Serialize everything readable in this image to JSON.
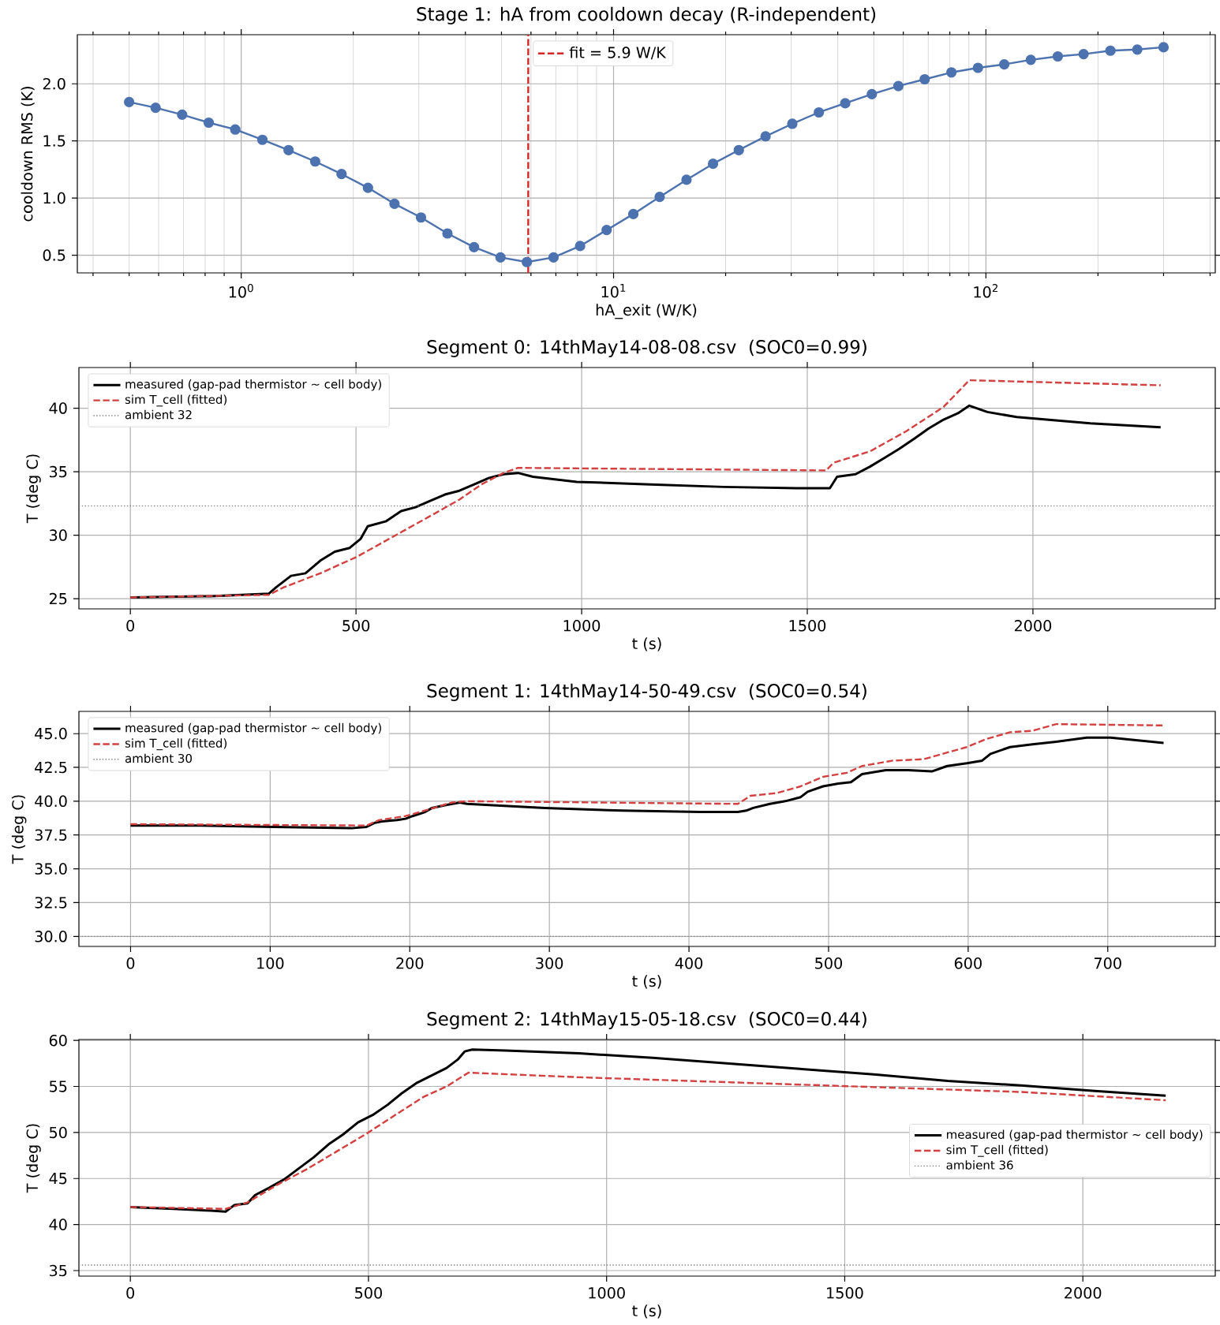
{
  "chart_data": [
    {
      "type": "line",
      "title": "Stage 1: hA from cooldown decay (R-independent)",
      "xlabel": "hA_exit (W/K)",
      "ylabel": "cooldown RMS (K)",
      "log": "x",
      "xlim": [
        0.363,
        413
      ],
      "ylim": [
        0.345,
        2.43
      ],
      "xticks": [
        {
          "value": 0.4,
          "label": null
        },
        {
          "value": 0.5,
          "label": null
        },
        {
          "value": 0.6,
          "label": null
        },
        {
          "value": 0.7,
          "label": null
        },
        {
          "value": 0.8,
          "label": null
        },
        {
          "value": 0.9,
          "label": null
        },
        {
          "value": 1,
          "label": "10$^{0}$"
        },
        {
          "value": 2,
          "label": null
        },
        {
          "value": 3,
          "label": null
        },
        {
          "value": 4,
          "label": null
        },
        {
          "value": 5,
          "label": null
        },
        {
          "value": 6,
          "label": null
        },
        {
          "value": 7,
          "label": null
        },
        {
          "value": 8,
          "label": null
        },
        {
          "value": 9,
          "label": null
        },
        {
          "value": 10,
          "label": "10$^{1}$"
        },
        {
          "value": 20,
          "label": null
        },
        {
          "value": 30,
          "label": null
        },
        {
          "value": 40,
          "label": null
        },
        {
          "value": 50,
          "label": null
        },
        {
          "value": 60,
          "label": null
        },
        {
          "value": 70,
          "label": null
        },
        {
          "value": 80,
          "label": null
        },
        {
          "value": 90,
          "label": null
        },
        {
          "value": 100,
          "label": "10$^{2}$"
        },
        {
          "value": 200,
          "label": null
        },
        {
          "value": 300,
          "label": null
        },
        {
          "value": 400,
          "label": null
        }
      ],
      "yticks": [
        {
          "value": 0.5,
          "label": "0.5"
        },
        {
          "value": 1,
          "label": "1.0"
        },
        {
          "value": 1.5,
          "label": "1.5"
        },
        {
          "value": 2,
          "label": "2.0"
        }
      ],
      "grid": true,
      "marker": "circle",
      "legend": "top",
      "x": [
        0.5,
        0.589,
        0.694,
        0.818,
        0.964,
        1.14,
        1.34,
        1.58,
        1.86,
        2.19,
        2.58,
        3.04,
        3.58,
        4.22,
        4.97,
        5.85,
        6.9,
        8.13,
        9.58,
        11.3,
        13.3,
        15.7,
        18.5,
        21.7,
        25.6,
        30.2,
        35.6,
        41.9,
        49.4,
        58.2,
        68.5,
        80.8,
        95.2,
        112,
        132,
        156,
        183,
        216,
        255,
        300
      ],
      "series": [
        {
          "color": "#4c72b0",
          "values": [
            1.84,
            1.79,
            1.73,
            1.66,
            1.6,
            1.51,
            1.42,
            1.32,
            1.21,
            1.09,
            0.95,
            0.83,
            0.69,
            0.57,
            0.48,
            0.44,
            0.48,
            0.58,
            0.72,
            0.86,
            1.01,
            1.16,
            1.3,
            1.42,
            1.54,
            1.65,
            1.75,
            1.83,
            1.91,
            1.98,
            2.04,
            2.1,
            2.14,
            2.17,
            2.21,
            2.24,
            2.26,
            2.29,
            2.3,
            2.32
          ]
        }
      ],
      "ref_lines": [
        {
          "axis": "x",
          "value": 5.9,
          "label": "fit = 5.9 W/K",
          "color": "#d62728",
          "line_style": "dashed"
        }
      ]
    },
    {
      "type": "line",
      "title": "Segment 0: 14thMay14-08-08.csv  (SOC0=0.99)",
      "xlabel": "t (s)",
      "ylabel": "T (deg C)",
      "xlim": [
        -114,
        2404
      ],
      "ylim": [
        24.2,
        43.2
      ],
      "xticks": [
        0,
        500,
        1000,
        1500,
        2000
      ],
      "yticks": [
        25,
        30,
        35,
        40
      ],
      "grid": true,
      "legend": "top left",
      "series": [
        {
          "name": "measured (gap-pad thermistor ~ cell body)",
          "color": "#000000",
          "line_style": "solid",
          "x": [
            0,
            177,
            307,
            323,
            356,
            388,
            421,
            453,
            486,
            510,
            526,
            567,
            600,
            632,
            664,
            697,
            729,
            762,
            794,
            827,
            859,
            892,
            989,
            1152,
            1314,
            1477,
            1550,
            1566,
            1607,
            1639,
            1672,
            1704,
            1737,
            1769,
            1802,
            1834,
            1859,
            1899,
            1964,
            2127,
            2283
          ],
          "values": [
            25.1,
            25.2,
            25.4,
            25.9,
            26.8,
            27.0,
            28.0,
            28.7,
            29.0,
            29.7,
            30.7,
            31.1,
            31.9,
            32.2,
            32.7,
            33.2,
            33.5,
            34.0,
            34.5,
            34.8,
            34.9,
            34.6,
            34.2,
            34.0,
            33.8,
            33.7,
            33.7,
            34.6,
            34.8,
            35.4,
            36.1,
            36.8,
            37.6,
            38.4,
            39.1,
            39.6,
            40.2,
            39.7,
            39.3,
            38.8,
            38.5
          ]
        },
        {
          "name": "sim T_cell (fitted)",
          "color": "#d43f3f",
          "line_style": "dashed",
          "x": [
            0,
            307,
            340,
            421,
            502,
            583,
            664,
            729,
            778,
            827,
            859,
            1542,
            1558,
            1639,
            1720,
            1802,
            1859,
            2283
          ],
          "values": [
            25.1,
            25.3,
            25.9,
            27.0,
            28.3,
            29.9,
            31.5,
            32.8,
            34.0,
            34.9,
            35.3,
            35.1,
            35.7,
            36.6,
            38.2,
            40.1,
            42.2,
            41.8
          ]
        }
      ],
      "ref_lines": [
        {
          "axis": "y",
          "value": 32.3,
          "label": "ambient 32",
          "color": "#808080",
          "line_style": "dotted"
        }
      ]
    },
    {
      "type": "line",
      "title": "Segment 1: 14thMay14-50-49.csv  (SOC0=0.54)",
      "xlabel": "t (s)",
      "ylabel": "T (deg C)",
      "xlim": [
        -37,
        777
      ],
      "ylim": [
        29.26,
        46.64
      ],
      "xticks": [
        0,
        100,
        200,
        300,
        400,
        500,
        600,
        700
      ],
      "yticks": [
        {
          "value": 30,
          "label": "30.0"
        },
        {
          "value": 32.5,
          "label": "32.5"
        },
        {
          "value": 35,
          "label": "35.0"
        },
        {
          "value": 37.5,
          "label": "37.5"
        },
        {
          "value": 40,
          "label": "40.0"
        },
        {
          "value": 42.5,
          "label": "42.5"
        },
        {
          "value": 45,
          "label": "45.0"
        }
      ],
      "grid": true,
      "legend": "top left",
      "series": [
        {
          "name": "measured (gap-pad thermistor ~ cell body)",
          "color": "#000000",
          "line_style": "solid",
          "x": [
            0,
            47,
            103,
            158,
            169,
            175,
            180,
            191,
            197,
            202,
            211,
            216,
            225,
            236,
            241,
            297,
            352,
            408,
            435,
            441,
            446,
            458,
            469,
            480,
            485,
            496,
            507,
            516,
            524,
            541,
            557,
            574,
            585,
            599,
            610,
            616,
            630,
            646,
            663,
            685,
            702,
            740
          ],
          "values": [
            38.2,
            38.2,
            38.1,
            38.0,
            38.1,
            38.4,
            38.5,
            38.6,
            38.7,
            38.9,
            39.2,
            39.5,
            39.7,
            39.9,
            39.8,
            39.5,
            39.3,
            39.2,
            39.2,
            39.3,
            39.5,
            39.8,
            40.0,
            40.3,
            40.7,
            41.1,
            41.3,
            41.4,
            42.0,
            42.3,
            42.3,
            42.2,
            42.6,
            42.8,
            43.0,
            43.5,
            44.0,
            44.2,
            44.4,
            44.7,
            44.7,
            44.3
          ]
        },
        {
          "name": "sim T_cell (fitted)",
          "color": "#d43f3f",
          "line_style": "dashed",
          "x": [
            0,
            169,
            178,
            197,
            214,
            230,
            241,
            435,
            444,
            463,
            480,
            496,
            513,
            524,
            546,
            568,
            585,
            599,
            613,
            630,
            646,
            663,
            740
          ],
          "values": [
            38.3,
            38.2,
            38.6,
            38.9,
            39.4,
            39.9,
            40.0,
            39.8,
            40.4,
            40.6,
            41.1,
            41.8,
            42.1,
            42.6,
            43.0,
            43.1,
            43.6,
            44.0,
            44.6,
            45.1,
            45.2,
            45.7,
            45.6
          ]
        }
      ],
      "ref_lines": [
        {
          "axis": "y",
          "value": 30.0,
          "label": "ambient 30",
          "color": "#808080",
          "line_style": "dotted"
        }
      ]
    },
    {
      "type": "line",
      "title": "Segment 2: 14thMay15-05-18.csv  (SOC0=0.44)",
      "xlabel": "t (s)",
      "ylabel": "T (deg C)",
      "xlim": [
        -108,
        2278
      ],
      "ylim": [
        34.4,
        60.1
      ],
      "xticks": [
        0,
        500,
        1000,
        1500,
        2000
      ],
      "yticks": [
        35,
        40,
        45,
        50,
        55,
        60
      ],
      "grid": true,
      "legend": "right",
      "series": [
        {
          "name": "measured (gap-pad thermistor ~ cell body)",
          "color": "#000000",
          "line_style": "solid",
          "x": [
            0,
            91,
            169,
            200,
            218,
            246,
            262,
            292,
            323,
            354,
            385,
            416,
            447,
            478,
            509,
            540,
            571,
            602,
            633,
            664,
            687,
            702,
            718,
            788,
            942,
            1097,
            1252,
            1406,
            1561,
            1716,
            1870,
            2025,
            2174
          ],
          "values": [
            41.9,
            41.7,
            41.5,
            41.4,
            42.1,
            42.3,
            43.2,
            44.0,
            44.9,
            46.1,
            47.3,
            48.7,
            49.8,
            51.1,
            51.9,
            53.0,
            54.3,
            55.4,
            56.2,
            57.0,
            57.9,
            58.8,
            59.0,
            58.9,
            58.6,
            58.1,
            57.5,
            56.9,
            56.3,
            55.6,
            55.1,
            54.5,
            54.0
          ]
        },
        {
          "name": "sim T_cell (fitted)",
          "color": "#d43f3f",
          "line_style": "dashed",
          "x": [
            0,
            200,
            246,
            308,
            370,
            432,
            497,
            556,
            617,
            664,
            710,
            942,
            1406,
            1870,
            2174
          ],
          "values": [
            41.9,
            41.7,
            42.4,
            44.3,
            46.0,
            47.9,
            49.9,
            51.9,
            53.9,
            55.0,
            56.5,
            56.0,
            55.2,
            54.4,
            53.5
          ]
        }
      ],
      "ref_lines": [
        {
          "axis": "y",
          "value": 35.6,
          "label": "ambient 36",
          "color": "#808080",
          "line_style": "dotted"
        }
      ]
    }
  ]
}
